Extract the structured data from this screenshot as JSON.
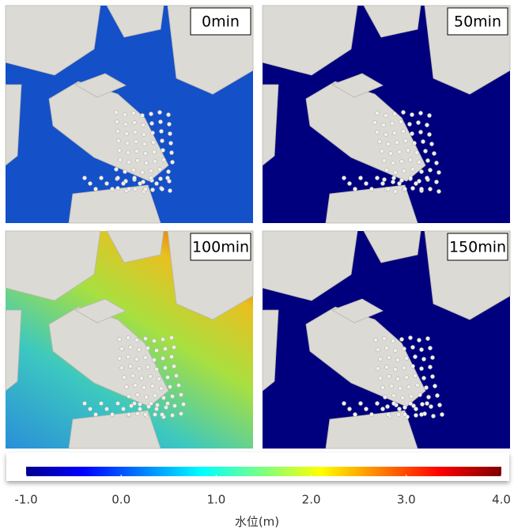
{
  "panels": [
    {
      "label": "0min"
    },
    {
      "label": "50min"
    },
    {
      "label": "100min"
    },
    {
      "label": "150min"
    }
  ],
  "colorbar": {
    "range": [
      -1,
      4
    ],
    "ticks": [
      {
        "value": -1,
        "label": "-1.0"
      },
      {
        "value": 0,
        "label": "0.0"
      },
      {
        "value": 1,
        "label": "1.0"
      },
      {
        "value": 2,
        "label": "2.0"
      },
      {
        "value": 3,
        "label": "3.0"
      },
      {
        "value": 4,
        "label": "4.0"
      }
    ],
    "label": "水位(m)"
  }
}
